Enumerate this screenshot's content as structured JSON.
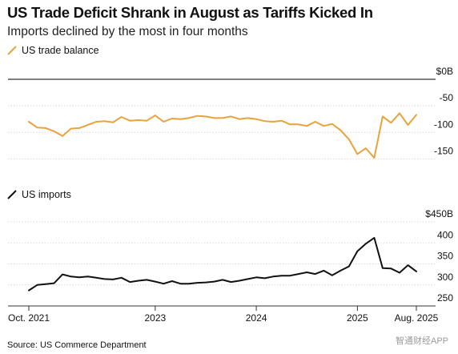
{
  "header": {
    "title": "US Trade Deficit Shrank in August as Tariffs Kicked In",
    "subtitle": "Imports declined by the most in four months"
  },
  "legend": {
    "top_label": "US trade balance",
    "bottom_label": "US imports"
  },
  "footer": {
    "source": "Source: US Commerce Department",
    "watermark": "智通财经APP"
  },
  "colors": {
    "balance_line": "#e8a33a",
    "imports_line": "#111111",
    "axis": "#333333",
    "grid": "#d9d9d9"
  },
  "chart_data": [
    {
      "type": "line",
      "name": "US trade balance",
      "ylim": [
        -160,
        0
      ],
      "yticks": [
        0,
        -50,
        -100,
        -150
      ],
      "ytick_labels": [
        "$0B",
        "-50",
        "-100",
        "-150"
      ],
      "x": [
        "2021-10",
        "2021-11",
        "2021-12",
        "2022-01",
        "2022-02",
        "2022-03",
        "2022-04",
        "2022-05",
        "2022-06",
        "2022-07",
        "2022-08",
        "2022-09",
        "2022-10",
        "2022-11",
        "2022-12",
        "2023-01",
        "2023-02",
        "2023-03",
        "2023-04",
        "2023-05",
        "2023-06",
        "2023-07",
        "2023-08",
        "2023-09",
        "2023-10",
        "2023-11",
        "2023-12",
        "2024-01",
        "2024-02",
        "2024-03",
        "2024-04",
        "2024-05",
        "2024-06",
        "2024-07",
        "2024-08",
        "2024-09",
        "2024-10",
        "2024-11",
        "2024-12",
        "2025-01",
        "2025-02",
        "2025-03",
        "2025-04",
        "2025-05",
        "2025-06",
        "2025-07",
        "2025-08"
      ],
      "values": [
        -80,
        -91,
        -92,
        -98,
        -107,
        -93,
        -92,
        -86,
        -80,
        -79,
        -81,
        -71,
        -78,
        -77,
        -78,
        -68,
        -80,
        -74,
        -75,
        -73,
        -69,
        -70,
        -73,
        -73,
        -70,
        -75,
        -73,
        -75,
        -79,
        -80,
        -78,
        -85,
        -85,
        -88,
        -80,
        -88,
        -84,
        -96,
        -113,
        -141,
        -130,
        -148,
        -70,
        -82,
        -64,
        -86,
        -67
      ]
    },
    {
      "type": "line",
      "name": "US imports",
      "ylim": [
        250,
        450
      ],
      "yticks": [
        450,
        400,
        350,
        300,
        250
      ],
      "ytick_labels": [
        "$450B",
        "400",
        "350",
        "300",
        "250"
      ],
      "x": [
        "2021-10",
        "2021-11",
        "2021-12",
        "2022-01",
        "2022-02",
        "2022-03",
        "2022-04",
        "2022-05",
        "2022-06",
        "2022-07",
        "2022-08",
        "2022-09",
        "2022-10",
        "2022-11",
        "2022-12",
        "2023-01",
        "2023-02",
        "2023-03",
        "2023-04",
        "2023-05",
        "2023-06",
        "2023-07",
        "2023-08",
        "2023-09",
        "2023-10",
        "2023-11",
        "2023-12",
        "2024-01",
        "2024-02",
        "2024-03",
        "2024-04",
        "2024-05",
        "2024-06",
        "2024-07",
        "2024-08",
        "2024-09",
        "2024-10",
        "2024-11",
        "2024-12",
        "2025-01",
        "2025-02",
        "2025-03",
        "2025-04",
        "2025-05",
        "2025-06",
        "2025-07",
        "2025-08"
      ],
      "values": [
        287,
        300,
        302,
        304,
        325,
        320,
        318,
        320,
        317,
        314,
        313,
        317,
        307,
        310,
        312,
        308,
        303,
        309,
        303,
        303,
        305,
        306,
        308,
        312,
        307,
        310,
        314,
        318,
        316,
        320,
        322,
        322,
        326,
        330,
        326,
        334,
        323,
        334,
        344,
        380,
        398,
        412,
        340,
        339,
        329,
        347,
        332
      ]
    }
  ],
  "x_axis": {
    "tick_labels": [
      "Oct. 2021",
      "2023",
      "2024",
      "2025",
      "Aug. 2025"
    ],
    "tick_dates": [
      "2021-10",
      "2023-01",
      "2024-01",
      "2025-01",
      "2025-08"
    ]
  }
}
